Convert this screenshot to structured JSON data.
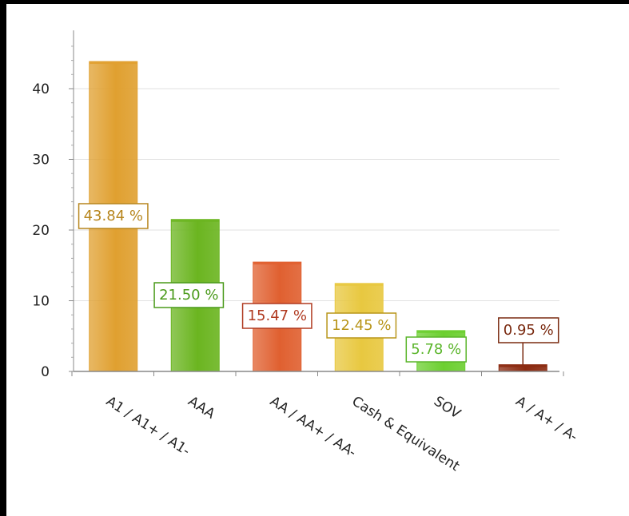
{
  "chart_data": {
    "type": "bar",
    "title": "",
    "xlabel": "",
    "ylabel": "",
    "ylim": [
      0,
      48
    ],
    "yticks": [
      "0",
      "10",
      "20",
      "30",
      "40"
    ],
    "grid": true,
    "legend": "none",
    "categories": [
      "A1 / A1+ / A1-",
      "AAA",
      "AA / AA+ / AA-",
      "Cash & Equivalent",
      "SOV",
      "A / A+ / A-"
    ],
    "values": [
      43.84,
      21.5,
      15.47,
      12.45,
      5.78,
      0.95
    ],
    "data_labels": [
      "43.84 %",
      "21.50 %",
      "15.47 %",
      "12.45 %",
      "5.78 %",
      "0.95 %"
    ],
    "colors": [
      "#e0a030",
      "#6bb520",
      "#e06030",
      "#e8c840",
      "#6ccf30",
      "#8b2a10"
    ],
    "label_colors": [
      "#b7861e",
      "#4a9a1a",
      "#b03a20",
      "#b8951a",
      "#5ab52a",
      "#7a2a10"
    ]
  }
}
